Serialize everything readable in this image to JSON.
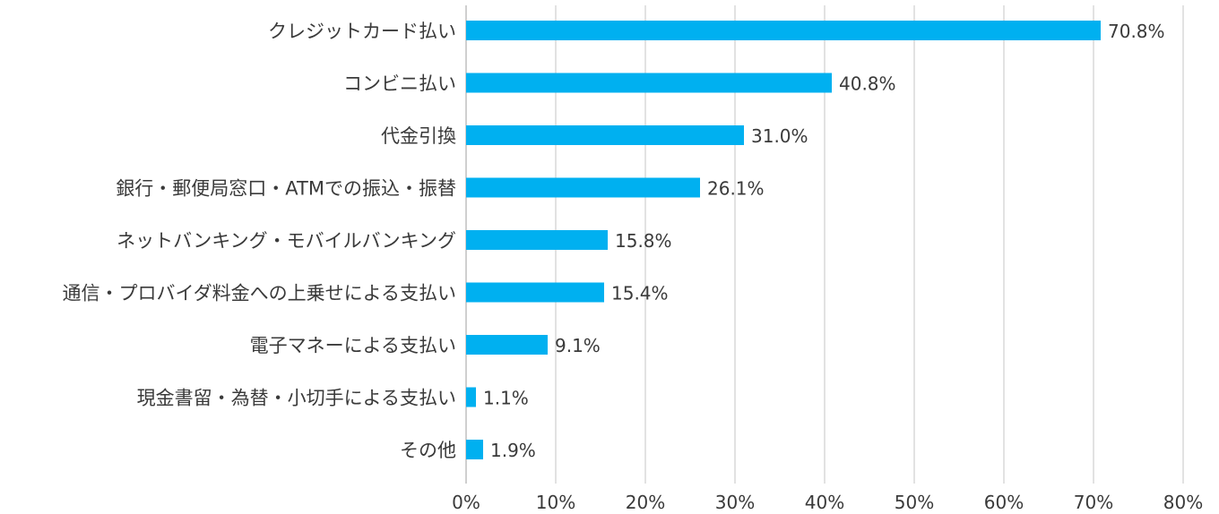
{
  "chart_data": {
    "type": "bar",
    "orientation": "horizontal",
    "title": "",
    "xlabel": "",
    "ylabel": "",
    "xlim": [
      0,
      80
    ],
    "x_ticks": [
      0,
      10,
      20,
      30,
      40,
      50,
      60,
      70,
      80
    ],
    "x_tick_labels": [
      "0%",
      "10%",
      "20%",
      "30%",
      "40%",
      "50%",
      "60%",
      "70%",
      "80%"
    ],
    "grid": "vertical",
    "legend": "none",
    "bar_color": "#00b0f0",
    "categories": [
      "クレジットカード払い",
      "コンビニ払い",
      "代金引換",
      "銀行・郵便局窓口・ATMでの振込・振替",
      "ネットバンキング・モバイルバンキング",
      "通信・プロバイダ料金への上乗せによる支払い",
      "電子マネーによる支払い",
      "現金書留・為替・小切手による支払い",
      "その他"
    ],
    "values": [
      70.8,
      40.8,
      31.0,
      26.1,
      15.8,
      15.4,
      9.1,
      1.1,
      1.9
    ],
    "value_labels": [
      "70.8%",
      "40.8%",
      "31.0%",
      "26.1%",
      "15.8%",
      "15.4%",
      "9.1%",
      "1.1%",
      "1.9%"
    ]
  }
}
